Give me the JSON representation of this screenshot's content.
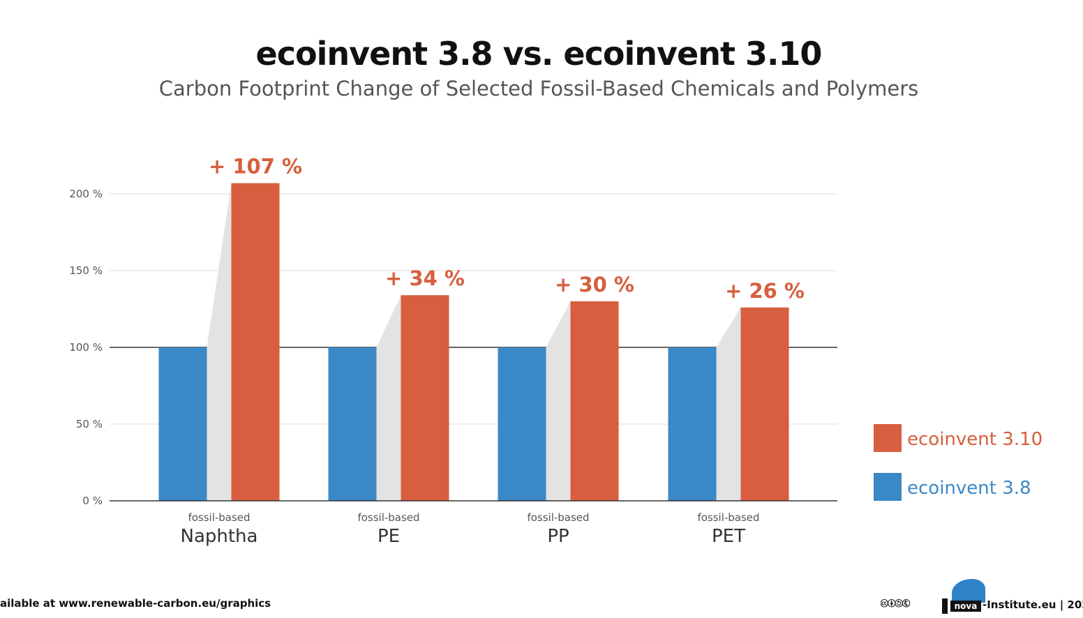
{
  "header": {
    "title": "ecoinvent 3.8 vs. ecoinvent 3.10",
    "subtitle": "Carbon Footprint Change of Selected Fossil-Based Chemicals and Polymers"
  },
  "chart_data": {
    "type": "bar",
    "title": "ecoinvent 3.8 vs. ecoinvent 3.10",
    "subtitle": "Carbon Footprint Change of Selected Fossil-Based Chemicals and Polymers",
    "categories": [
      "Naphtha",
      "PE",
      "PP",
      "PET"
    ],
    "category_prefix": "fossil-based",
    "series": [
      {
        "name": "ecoinvent 3.8",
        "color": "#3b88c6",
        "values": [
          100,
          100,
          100,
          100
        ]
      },
      {
        "name": "ecoinvent 3.10",
        "color": "#d75e3e",
        "values": [
          207,
          134,
          130,
          126
        ]
      }
    ],
    "change_labels": [
      "+ 107 %",
      "+ 34 %",
      "+ 30 %",
      "+ 26 %"
    ],
    "y_ticks": [
      "0 %",
      "50 %",
      "100 %",
      "150 %",
      "200 %"
    ],
    "y_tick_values": [
      0,
      50,
      100,
      150,
      200
    ],
    "ylim": [
      0,
      200
    ],
    "baseline": 100,
    "xlabel": "",
    "ylabel": "",
    "grid": true,
    "legend_position": "right",
    "legend_order": [
      "ecoinvent 3.10",
      "ecoinvent 3.8"
    ],
    "colors": {
      "series_3_8": "#3b88c6",
      "series_3_10": "#d75e3e",
      "connector": "#e3e3e3",
      "grid": "#dddddd",
      "axis": "#333333"
    }
  },
  "footer": {
    "left_text": "ailable at www.renewable-carbon.eu/graphics",
    "license_icons": "🅭🅯🄎🅮",
    "logo_text": "nova",
    "right_text": "-Institute.eu | 202"
  }
}
